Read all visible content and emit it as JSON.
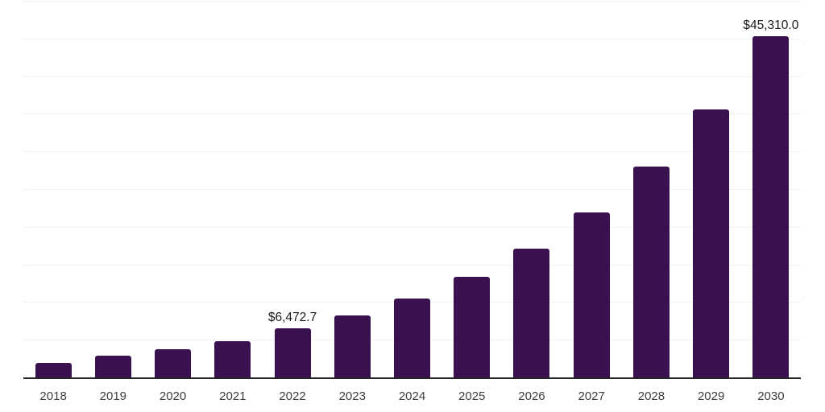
{
  "chart_data": {
    "type": "bar",
    "title": "",
    "xlabel": "",
    "ylabel": "",
    "categories": [
      "2018",
      "2019",
      "2020",
      "2021",
      "2022",
      "2023",
      "2024",
      "2025",
      "2026",
      "2027",
      "2028",
      "2029",
      "2030"
    ],
    "values": [
      1950,
      2900,
      3750,
      4850,
      6472.7,
      8200,
      10500,
      13400,
      17100,
      21900,
      28000,
      35600,
      45310
    ],
    "data_labels": [
      {
        "category": "2022",
        "text": "$6,472.7"
      },
      {
        "category": "2030",
        "text": "$45,310.0"
      }
    ],
    "ylim": [
      0,
      50000
    ],
    "gridline_interval": 5000,
    "grid": true,
    "legend": false,
    "y_tick_labels_visible": false,
    "colors": {
      "bar": "#38114E",
      "gridline": "#f1f1f1",
      "axis_line": "#262626",
      "tick_label": "#3d3d3d",
      "data_label": "#1a1a1a",
      "background": "#ffffff"
    }
  }
}
